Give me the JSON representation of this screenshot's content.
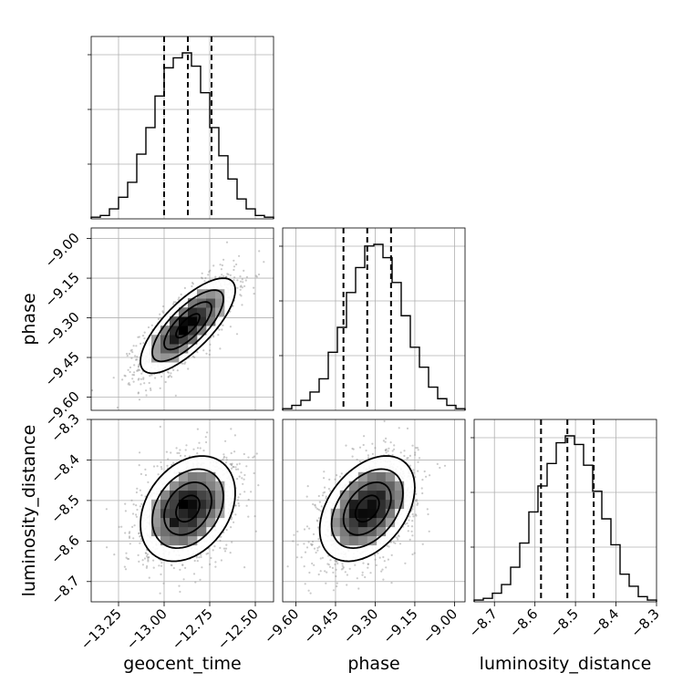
{
  "chart_data": {
    "type": "corner",
    "parameters": [
      {
        "key": "geocent_time",
        "label": "geocent_time",
        "mean": -12.87,
        "sd": 0.13,
        "range": [
          -13.4,
          -12.4
        ],
        "ticks": [
          -13.25,
          -13.0,
          -12.75,
          -12.5
        ],
        "tick_labels": [
          "−13.25",
          "−13.00",
          "−12.75",
          "−12.50"
        ],
        "quantiles": [
          -13.0,
          -12.87,
          -12.74
        ]
      },
      {
        "key": "phase",
        "label": "phase",
        "mean": -9.33,
        "sd": 0.09,
        "range": [
          -9.65,
          -8.96
        ],
        "ticks": [
          -9.6,
          -9.45,
          -9.3,
          -9.15,
          -9.0
        ],
        "tick_labels": [
          "−9.60",
          "−9.45",
          "−9.30",
          "−9.15",
          "−9.00"
        ],
        "quantiles": [
          -9.42,
          -9.33,
          -9.24
        ]
      },
      {
        "key": "luminosity_distance",
        "label": "luminosity_distance",
        "mean": -8.52,
        "sd": 0.065,
        "range": [
          -8.75,
          -8.3
        ],
        "ticks": [
          -8.7,
          -8.6,
          -8.5,
          -8.4,
          -8.3
        ],
        "tick_labels": [
          "−8.7",
          "−8.6",
          "−8.5",
          "−8.4",
          "−8.3"
        ],
        "quantiles": [
          -8.585,
          -8.52,
          -8.455
        ]
      }
    ],
    "histograms": [
      {
        "param": "geocent_time",
        "bins": 20,
        "counts": [
          1,
          2,
          6,
          13,
          22,
          39,
          55,
          74,
          91,
          97,
          100,
          92,
          76,
          55,
          38,
          24,
          12,
          6,
          2,
          1
        ]
      },
      {
        "param": "phase",
        "bins": 20,
        "counts": [
          1,
          3,
          6,
          11,
          19,
          35,
          50,
          71,
          86,
          99,
          100,
          92,
          77,
          57,
          38,
          26,
          14,
          7,
          3,
          1
        ]
      },
      {
        "param": "luminosity_distance",
        "bins": 20,
        "counts": [
          1,
          2,
          5,
          10,
          20,
          34,
          52,
          67,
          80,
          92,
          96,
          91,
          79,
          64,
          48,
          33,
          16,
          9,
          3,
          1
        ]
      }
    ],
    "correlations": [
      {
        "x": "geocent_time",
        "y": "phase",
        "rho": 0.75
      },
      {
        "x": "geocent_time",
        "y": "luminosity_distance",
        "rho": 0.3
      },
      {
        "x": "phase",
        "y": "luminosity_distance",
        "rho": 0.4
      }
    ],
    "contour_levels_sigma": [
      0.5,
      1.0,
      1.5,
      2.0
    ],
    "grid": true
  }
}
